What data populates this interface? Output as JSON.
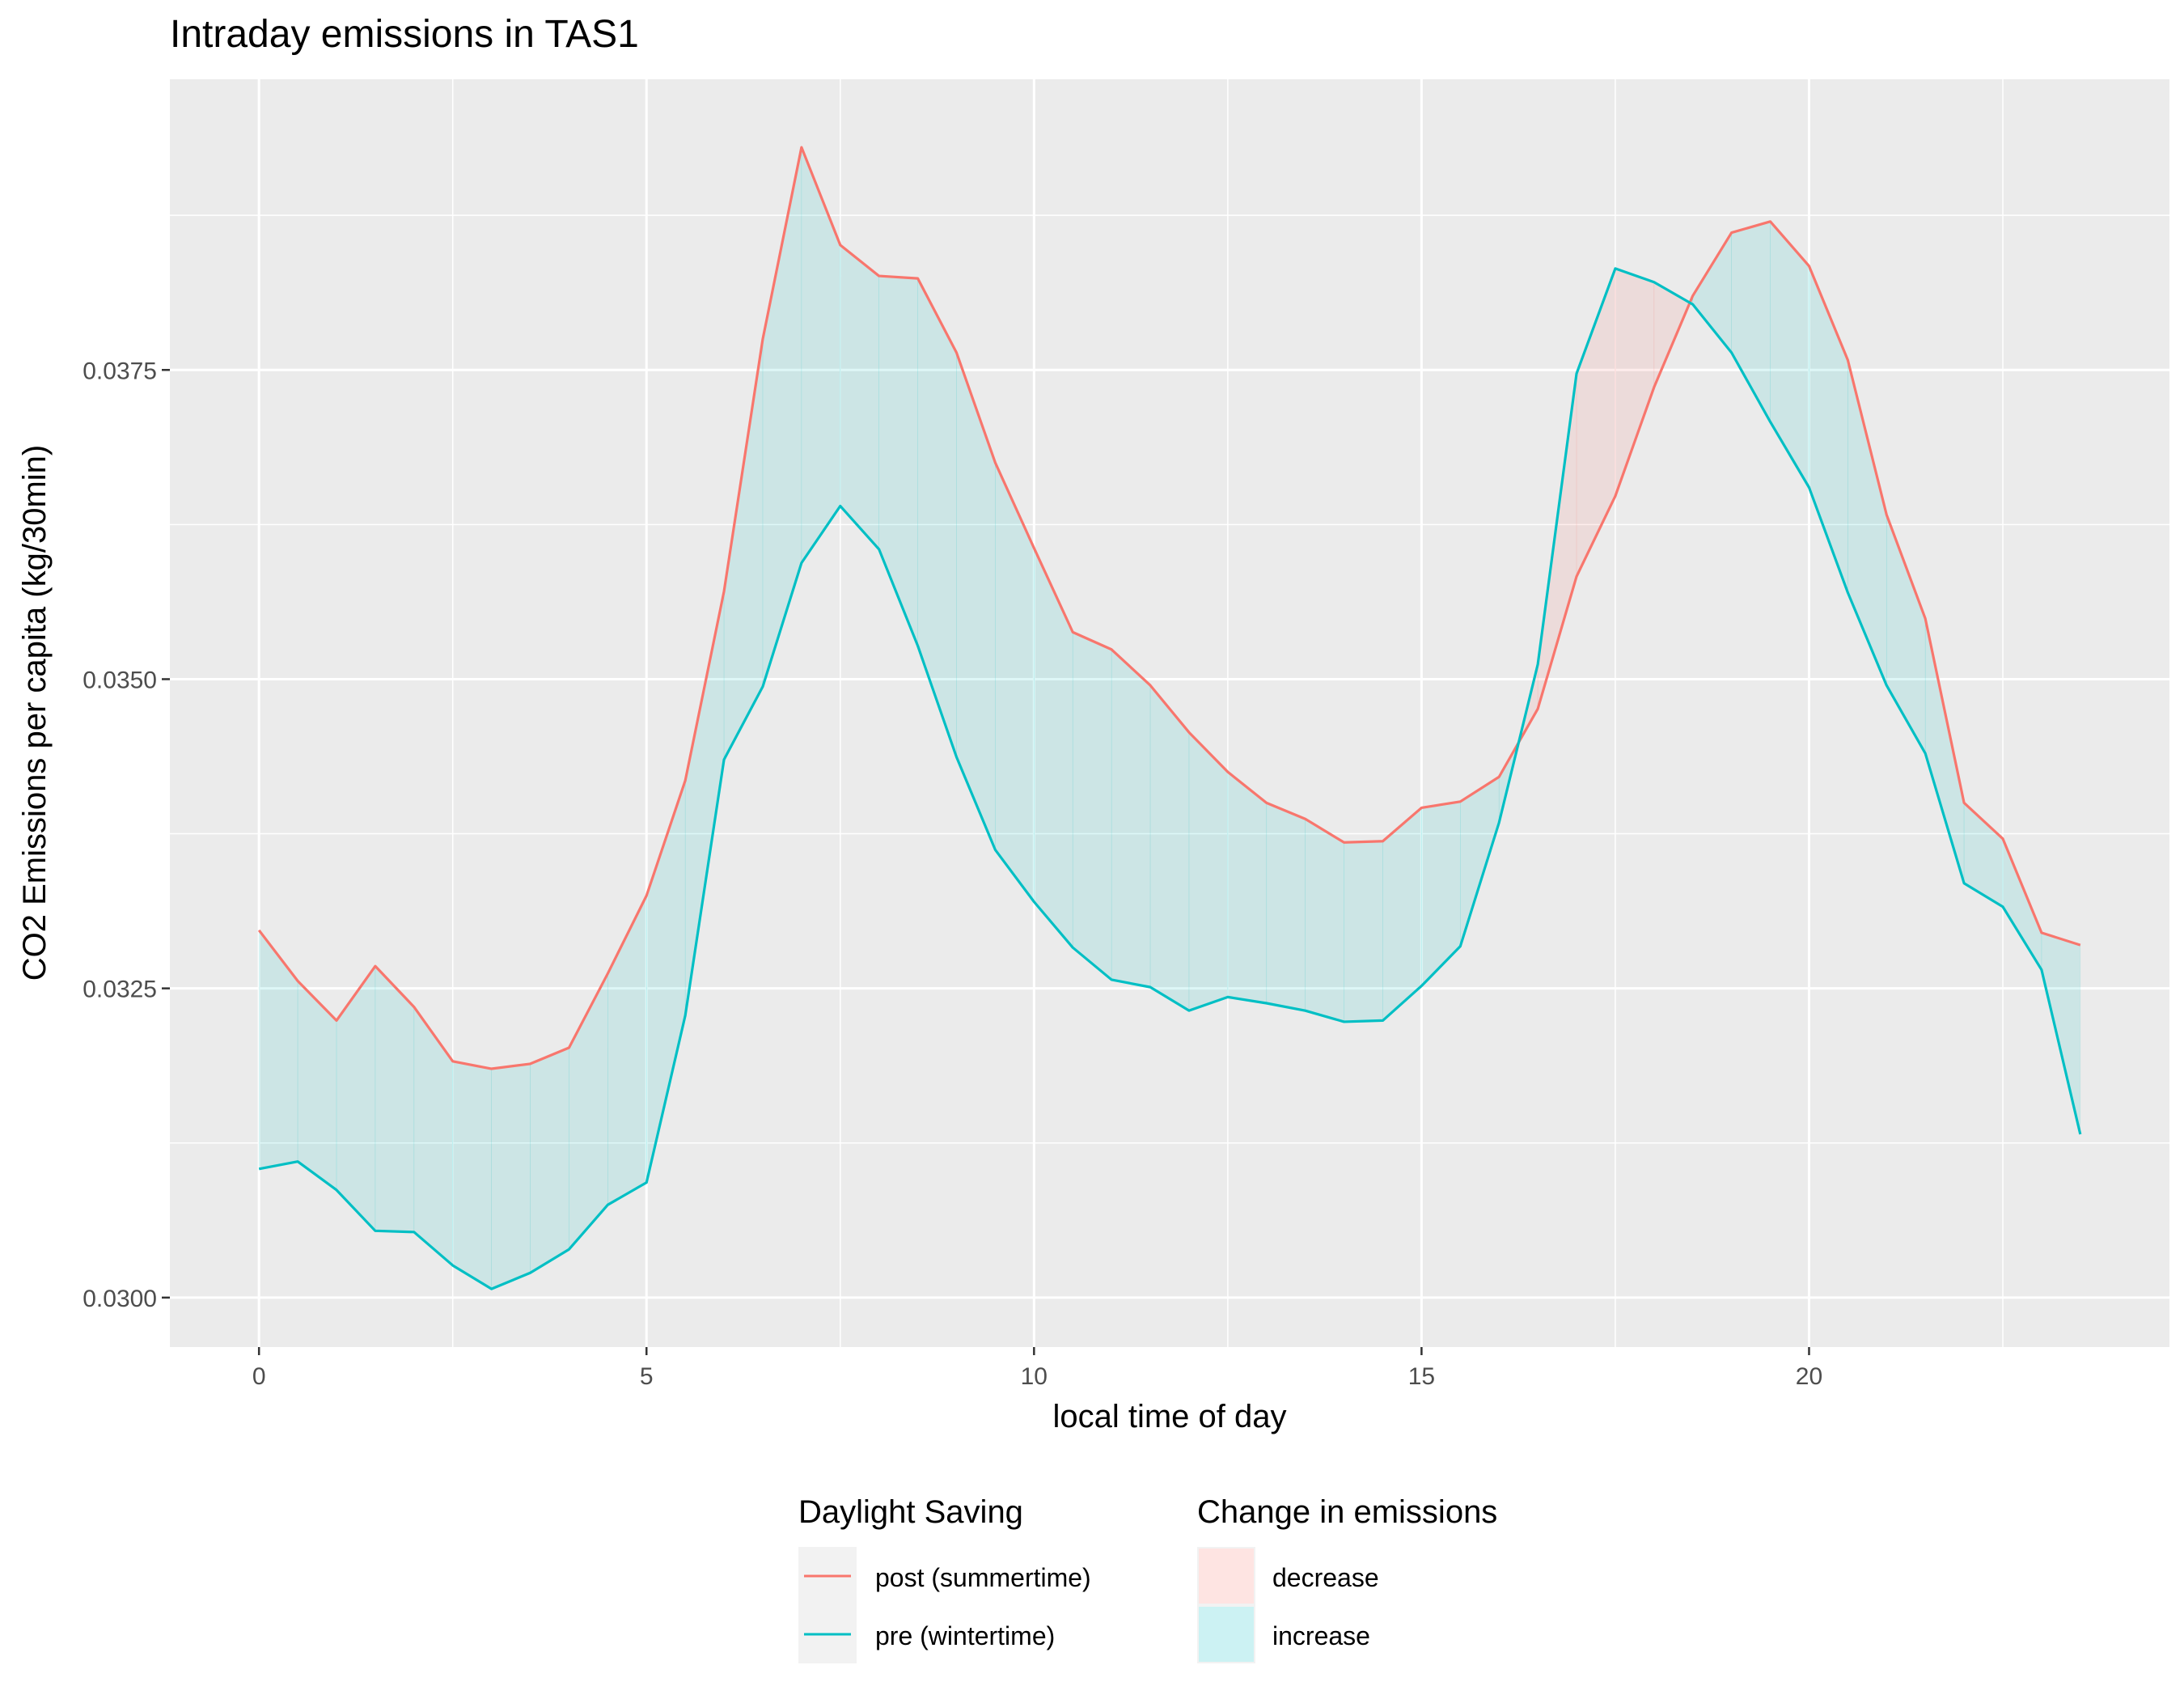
{
  "chart_data": {
    "type": "line",
    "title": "Intraday emissions in TAS1",
    "xlabel": "local time of day",
    "ylabel": "CO2 Emissions per capita (kg/30min)",
    "xlim": [
      -1.15,
      24.65
    ],
    "ylim": [
      0.0296,
      0.03985
    ],
    "x_ticks": [
      0,
      5,
      10,
      15,
      20
    ],
    "x_tick_labels": [
      "0",
      "5",
      "10",
      "15",
      "20"
    ],
    "y_ticks": [
      0.03,
      0.0325,
      0.035,
      0.0375
    ],
    "y_tick_labels": [
      "0.0300",
      "0.0325",
      "0.0350",
      "0.0375"
    ],
    "grid": true,
    "legend_position": "bottom",
    "x": [
      0,
      0.5,
      1,
      1.5,
      2,
      2.5,
      3,
      3.5,
      4,
      4.5,
      5,
      5.5,
      6,
      6.5,
      7,
      7.5,
      8,
      8.5,
      9,
      9.5,
      10,
      10.5,
      11,
      11.5,
      12,
      12.5,
      13,
      13.5,
      14,
      14.5,
      15,
      15.5,
      16,
      16.5,
      17,
      17.5,
      18,
      18.5,
      19,
      19.5,
      20,
      20.5,
      21,
      21.5,
      22,
      22.5,
      23,
      23.5
    ],
    "series": [
      {
        "name": "post (summertime)",
        "color": "#F8766D",
        "values": [
          0.03297,
          0.03256,
          0.03224,
          0.03268,
          0.03235,
          0.03191,
          0.03185,
          0.03189,
          0.03202,
          0.03262,
          0.03325,
          0.03418,
          0.03571,
          0.03775,
          0.0393,
          0.03851,
          0.03826,
          0.03824,
          0.03764,
          0.03675,
          0.03606,
          0.03538,
          0.03524,
          0.03495,
          0.03457,
          0.03425,
          0.034,
          0.03387,
          0.03368,
          0.03369,
          0.03396,
          0.03401,
          0.03421,
          0.03476,
          0.03583,
          0.03648,
          0.03736,
          0.0381,
          0.03861,
          0.0387,
          0.03834,
          0.03758,
          0.03633,
          0.03549,
          0.034,
          0.03371,
          0.03295,
          0.03285
        ]
      },
      {
        "name": "pre (wintertime)",
        "color": "#00BFC4",
        "values": [
          0.03104,
          0.0311,
          0.03087,
          0.03054,
          0.03053,
          0.03026,
          0.03007,
          0.0302,
          0.03039,
          0.03075,
          0.03093,
          0.03228,
          0.03435,
          0.03494,
          0.03594,
          0.0364,
          0.03605,
          0.03527,
          0.03437,
          0.03362,
          0.0332,
          0.03283,
          0.03257,
          0.03251,
          0.03232,
          0.03243,
          0.03238,
          0.03232,
          0.03223,
          0.03224,
          0.03252,
          0.03284,
          0.03384,
          0.03512,
          0.03747,
          0.03832,
          0.03821,
          0.03803,
          0.03764,
          0.03708,
          0.03655,
          0.0357,
          0.03495,
          0.0344,
          0.03335,
          0.03316,
          0.03265,
          0.03132
        ]
      }
    ],
    "fill_legend": {
      "title": "Change in emissions",
      "items": [
        {
          "label": "decrease",
          "color": "#F8766D"
        },
        {
          "label": "increase",
          "color": "#00BFC4"
        }
      ]
    },
    "line_legend": {
      "title": "Daylight Saving"
    }
  }
}
